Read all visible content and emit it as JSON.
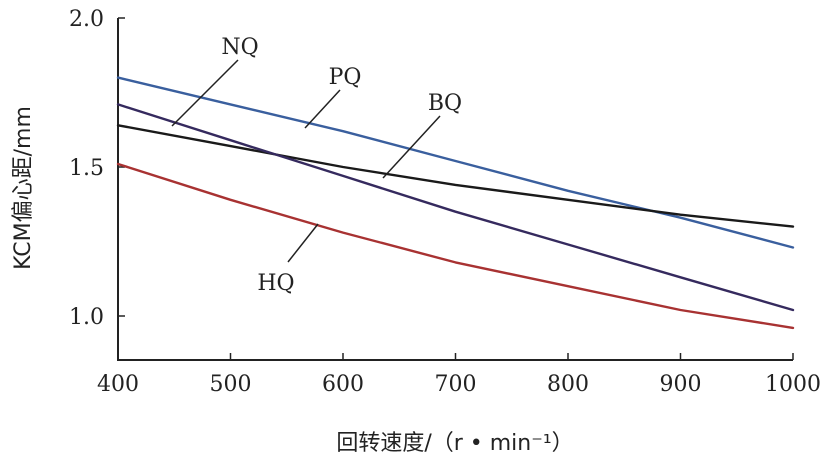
{
  "chart_data": {
    "type": "line",
    "title": "",
    "xlabel": "回转速度/（r • min⁻¹）",
    "ylabel": "KCM偏心距/mm",
    "xlim": [
      400,
      1000
    ],
    "ylim": [
      0.85,
      2.0
    ],
    "x_ticks": [
      400,
      500,
      600,
      700,
      800,
      900,
      1000
    ],
    "y_ticks": [
      1.0,
      1.5,
      2.0
    ],
    "x_tick_labels": [
      "400",
      "500",
      "600",
      "700",
      "800",
      "900",
      "1000"
    ],
    "y_tick_labels": [
      "1.0",
      "1.5",
      "2.0"
    ],
    "grid": false,
    "legend": "inline labels",
    "x": [
      400,
      500,
      600,
      700,
      800,
      900,
      1000
    ],
    "series": [
      {
        "name": "PQ",
        "color": "#3a5f9e",
        "values": [
          1.8,
          1.71,
          1.62,
          1.52,
          1.42,
          1.33,
          1.23
        ]
      },
      {
        "name": "BQ",
        "color": "#1a1a1a",
        "values": [
          1.64,
          1.57,
          1.5,
          1.44,
          1.39,
          1.34,
          1.3
        ]
      },
      {
        "name": "NQ",
        "color": "#352a5e",
        "values": [
          1.71,
          1.59,
          1.47,
          1.35,
          1.24,
          1.13,
          1.02
        ]
      },
      {
        "name": "HQ",
        "color": "#a83232",
        "values": [
          1.51,
          1.39,
          1.28,
          1.18,
          1.1,
          1.02,
          0.96
        ]
      }
    ]
  }
}
